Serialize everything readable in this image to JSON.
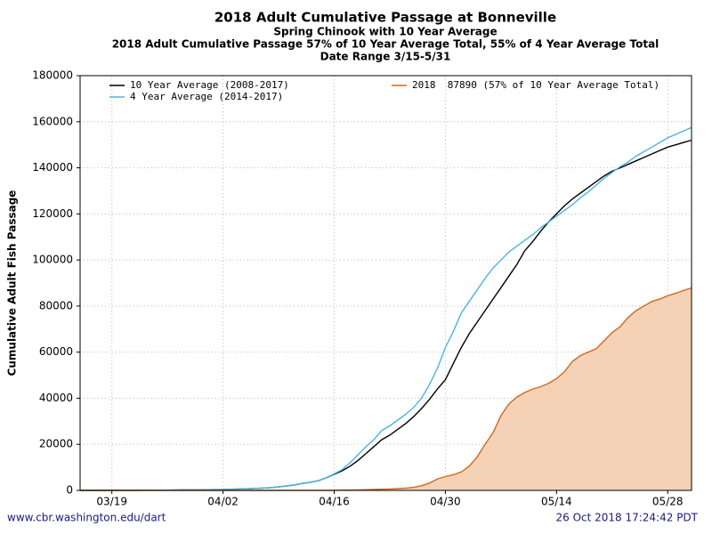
{
  "chart_data": {
    "type": "line",
    "title": "2018 Adult Cumulative Passage at Bonneville",
    "subtitle": "Spring Chinook with 10 Year Average",
    "subtitle2": "2018 Adult Cumulative Passage 57% of 10 Year Average Total, 55% of 4 Year Average Total",
    "subtitle3": "Date Range 3/15-5/31",
    "y_label": "Cumulative Adult Fish Passage",
    "source": "www.cbr.washington.edu/dart",
    "timestamp": "26 Oct 2018 17:24:42 PDT",
    "x": [
      "03/15",
      "03/16",
      "03/17",
      "03/18",
      "03/19",
      "03/20",
      "03/21",
      "03/22",
      "03/23",
      "03/24",
      "03/25",
      "03/26",
      "03/27",
      "03/28",
      "03/29",
      "03/30",
      "03/31",
      "04/01",
      "04/02",
      "04/03",
      "04/04",
      "04/05",
      "04/06",
      "04/07",
      "04/08",
      "04/09",
      "04/10",
      "04/11",
      "04/12",
      "04/13",
      "04/14",
      "04/15",
      "04/16",
      "04/17",
      "04/18",
      "04/19",
      "04/20",
      "04/21",
      "04/22",
      "04/23",
      "04/24",
      "04/25",
      "04/26",
      "04/27",
      "04/28",
      "04/29",
      "04/30",
      "05/01",
      "05/02",
      "05/03",
      "05/04",
      "05/05",
      "05/06",
      "05/07",
      "05/08",
      "05/09",
      "05/10",
      "05/11",
      "05/12",
      "05/13",
      "05/14",
      "05/15",
      "05/16",
      "05/17",
      "05/18",
      "05/19",
      "05/20",
      "05/21",
      "05/22",
      "05/23",
      "05/24",
      "05/25",
      "05/26",
      "05/27",
      "05/28",
      "05/29",
      "05/30",
      "05/31"
    ],
    "xticks": [
      "03/19",
      "04/02",
      "04/16",
      "04/30",
      "05/14",
      "05/28"
    ],
    "ylim": [
      0,
      180000
    ],
    "yticks": [
      0,
      20000,
      40000,
      60000,
      80000,
      100000,
      120000,
      140000,
      160000,
      180000
    ],
    "grid": true,
    "series": [
      {
        "name": "10 Year Average (2008-2017)",
        "color": "#000000",
        "values": [
          0,
          0,
          0,
          0,
          10,
          20,
          30,
          40,
          60,
          80,
          100,
          120,
          150,
          180,
          210,
          250,
          300,
          350,
          400,
          500,
          600,
          700,
          850,
          1000,
          1200,
          1500,
          1900,
          2400,
          3000,
          3500,
          4200,
          5500,
          7000,
          8500,
          10500,
          13000,
          16000,
          19000,
          22000,
          24000,
          26500,
          29000,
          32000,
          35500,
          39500,
          44000,
          48000,
          55000,
          62000,
          68000,
          73000,
          78000,
          83000,
          88000,
          93000,
          98000,
          104000,
          108000,
          112500,
          116500,
          120000,
          123500,
          126500,
          129000,
          131500,
          134000,
          136500,
          138500,
          140000,
          141500,
          143000,
          144500,
          146000,
          147500,
          149000,
          150000,
          151000,
          152000
        ]
      },
      {
        "name": "4 Year Average (2014-2017)",
        "color": "#4eb3e0",
        "values": [
          0,
          0,
          0,
          0,
          10,
          20,
          30,
          40,
          60,
          80,
          100,
          120,
          150,
          180,
          210,
          250,
          300,
          350,
          400,
          500,
          600,
          700,
          850,
          1000,
          1200,
          1500,
          1900,
          2400,
          3000,
          3500,
          4200,
          5500,
          7200,
          9000,
          12000,
          15500,
          19000,
          22000,
          26000,
          28000,
          30500,
          33000,
          36000,
          40000,
          46000,
          53000,
          62000,
          69000,
          77000,
          82000,
          87000,
          92000,
          96500,
          100000,
          103500,
          106000,
          108500,
          111000,
          114000,
          116500,
          119000,
          121500,
          124000,
          127000,
          129500,
          132500,
          135500,
          138000,
          140500,
          142500,
          145000,
          147000,
          149000,
          151000,
          153000,
          154500,
          156000,
          157500
        ]
      },
      {
        "name": "2018  87890 (57% of 10 Year Average Total)",
        "color": "#d2691e",
        "fill": "#f5d2b6",
        "values": [
          0,
          0,
          0,
          0,
          0,
          0,
          0,
          0,
          0,
          0,
          0,
          0,
          0,
          0,
          0,
          0,
          0,
          0,
          0,
          0,
          0,
          0,
          0,
          0,
          0,
          0,
          0,
          0,
          0,
          0,
          0,
          0,
          0,
          100,
          150,
          200,
          300,
          400,
          500,
          600,
          800,
          1000,
          1300,
          2000,
          3200,
          5000,
          6000,
          6800,
          8000,
          10500,
          14500,
          20000,
          25000,
          32500,
          37500,
          40500,
          42500,
          44000,
          45000,
          46500,
          48500,
          51500,
          56000,
          58500,
          60000,
          61500,
          65000,
          68500,
          71000,
          75000,
          78000,
          80000,
          82000,
          83000,
          84500,
          85500,
          86800,
          87890
        ]
      }
    ]
  }
}
